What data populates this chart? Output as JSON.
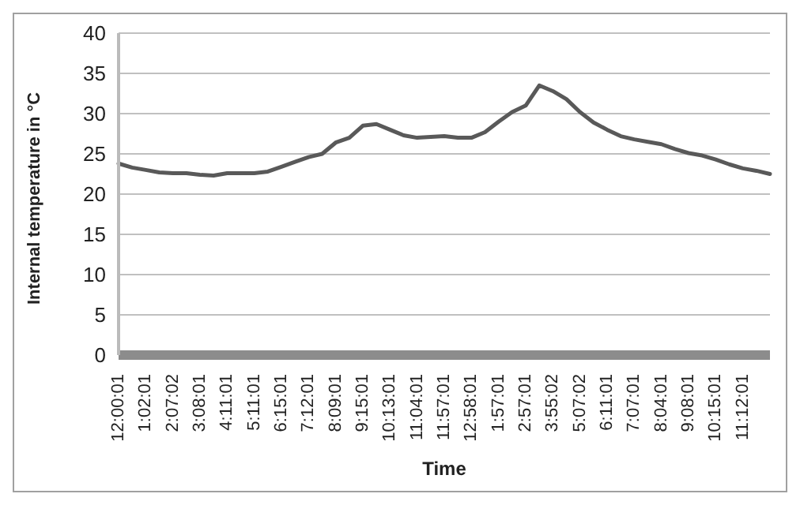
{
  "chart_data": {
    "type": "line",
    "xlabel": "Time",
    "ylabel": "Internal temperature in °C",
    "categories": [
      "12:00:01",
      null,
      "1:02:01",
      null,
      "2:07:02",
      null,
      "3:08:01",
      null,
      "4:11:01",
      null,
      "5:11:01",
      null,
      "6:15:01",
      null,
      "7:12:01",
      null,
      "8:09:01",
      null,
      "9:15:01",
      null,
      "10:13:01",
      null,
      "11:04:01",
      null,
      "11:57:01",
      null,
      "12:58:01",
      null,
      "1:57:01",
      null,
      "2:57:01",
      null,
      "3:55:02",
      null,
      "5:07:02",
      null,
      "6:11:01",
      null,
      "7:07:01",
      null,
      "8:04:01",
      null,
      "9:08:01",
      null,
      "10:15:01",
      null,
      "11:12:01",
      null,
      null
    ],
    "series": [
      {
        "color": "#595959",
        "values": [
          23.8,
          23.3,
          23.0,
          22.7,
          22.6,
          22.6,
          22.4,
          22.3,
          22.6,
          22.6,
          22.6,
          22.8,
          23.4,
          24.0,
          24.6,
          25.0,
          26.4,
          27.0,
          28.5,
          28.7,
          28.0,
          27.3,
          27.0,
          27.1,
          27.2,
          27.0,
          27.0,
          27.7,
          29.0,
          30.2,
          31.0,
          33.5,
          32.8,
          31.8,
          30.2,
          28.9,
          28.0,
          27.2,
          26.8,
          26.5,
          26.2,
          25.6,
          25.1,
          24.8,
          24.3,
          23.7,
          23.2,
          22.9,
          22.5
        ]
      }
    ],
    "ylim": [
      0,
      40
    ],
    "yticks": [
      0,
      5,
      10,
      15,
      20,
      25,
      30,
      35,
      40
    ],
    "grid": "y",
    "marker": "none",
    "line_style": "solid",
    "legend": false
  }
}
